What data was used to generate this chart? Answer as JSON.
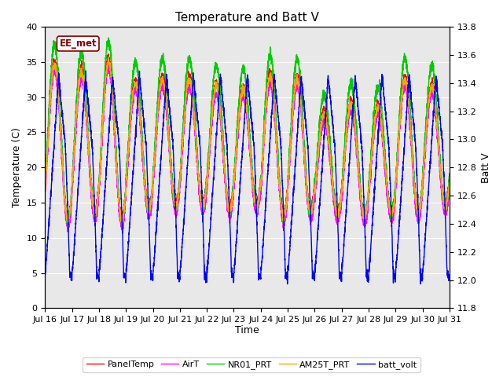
{
  "title": "Temperature and Batt V",
  "xlabel": "Time",
  "ylabel_left": "Temperature (C)",
  "ylabel_right": "Batt V",
  "xlim_start": 0,
  "xlim_end": 15,
  "ylim_left": [
    0,
    40
  ],
  "ylim_right": [
    11.8,
    13.8
  ],
  "background_color": "#e8e8e8",
  "annotation_text": "EE_met",
  "annotation_color": "#8b0000",
  "xtick_labels": [
    "Jul 16",
    "Jul 17",
    "Jul 18",
    "Jul 19",
    "Jul 20",
    "Jul 21",
    "Jul 22",
    "Jul 23",
    "Jul 24",
    "Jul 25",
    "Jul 26",
    "Jul 27",
    "Jul 28",
    "Jul 29",
    "Jul 30",
    "Jul 31"
  ],
  "legend_entries": [
    "PanelTemp",
    "AirT",
    "NR01_PRT",
    "AM25T_PRT",
    "batt_volt"
  ],
  "legend_colors": [
    "#ff0000",
    "#ff00ff",
    "#00cc00",
    "#ffa500",
    "#0000ff"
  ],
  "line_width": 1.0,
  "title_fontsize": 11,
  "label_fontsize": 9,
  "tick_fontsize": 8
}
